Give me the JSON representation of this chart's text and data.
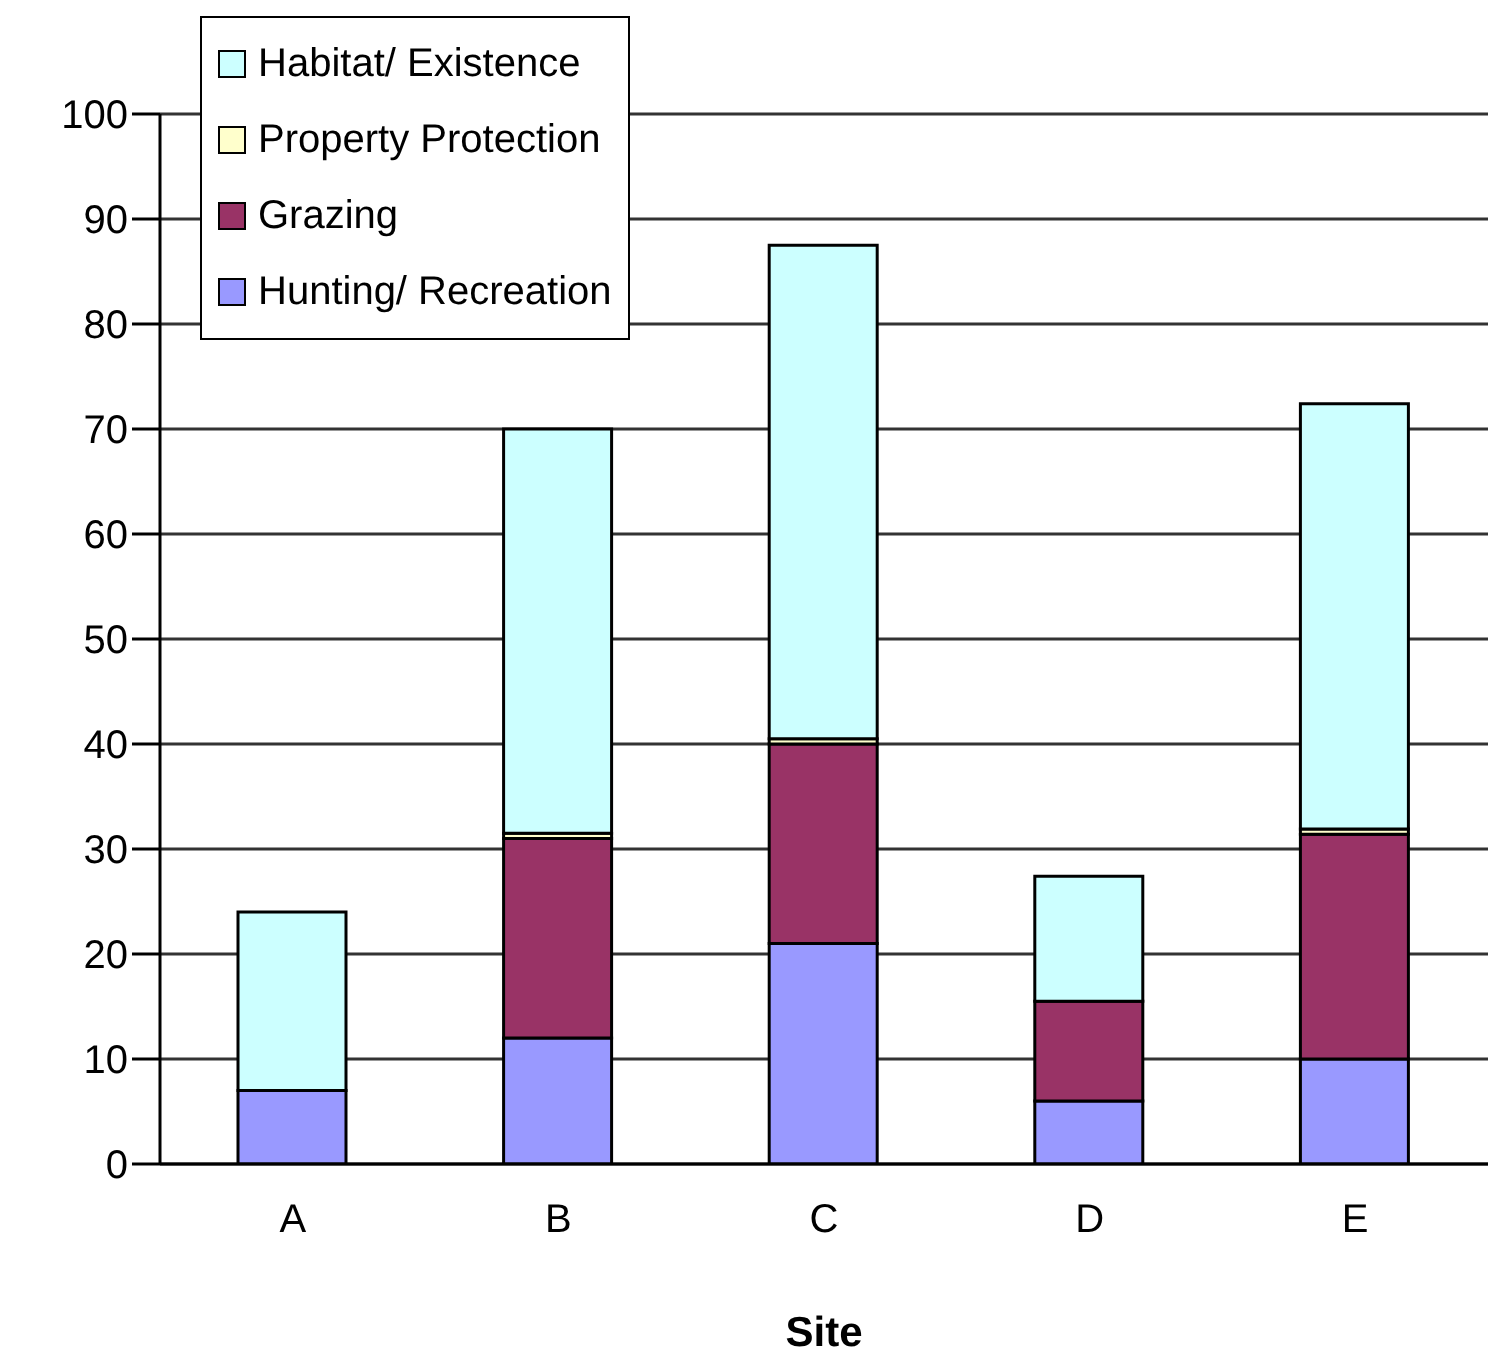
{
  "chart_data": {
    "type": "bar",
    "xlabel": "Site",
    "categories": [
      "A",
      "B",
      "C",
      "D",
      "E"
    ],
    "stacked": true,
    "series": [
      {
        "name": "Hunting/ Recreation",
        "color": "#9999ff",
        "values": [
          7,
          12,
          21,
          6,
          10
        ]
      },
      {
        "name": "Grazing",
        "color": "#993366",
        "values": [
          0,
          19,
          19,
          9.5,
          21.4
        ]
      },
      {
        "name": "Property Protection",
        "color": "#ffffcc",
        "values": [
          0,
          0.5,
          0.5,
          0,
          0.5
        ]
      },
      {
        "name": "Habitat/ Existence",
        "color": "#ccffff",
        "values": [
          17,
          38.5,
          47,
          11.9,
          40.5
        ]
      }
    ],
    "ylim": [
      0,
      100
    ],
    "yticks": [
      0,
      10,
      20,
      30,
      40,
      50,
      60,
      70,
      80,
      90,
      100
    ],
    "grid": "y",
    "legend": "top left"
  }
}
